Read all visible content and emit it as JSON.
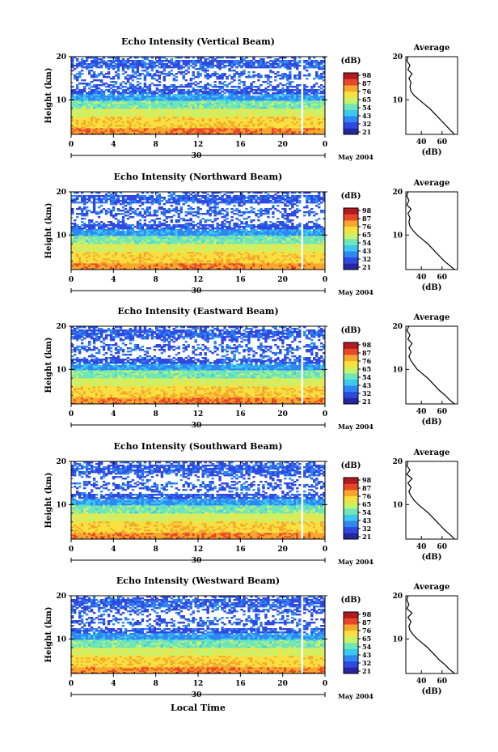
{
  "chart_data": {
    "type": "heatmap",
    "colorbar": {
      "unit": "(dB)",
      "ticks": [
        "98",
        "87",
        "76",
        "65",
        "54",
        "43",
        "32",
        "21"
      ],
      "colors": [
        "#26269e",
        "#2f49e0",
        "#2f88f2",
        "#3cc9f0",
        "#6fe6b8",
        "#c9f26a",
        "#f7e040",
        "#f7a72d",
        "#e8482a",
        "#b11a20"
      ]
    },
    "x_ticks": [
      "0",
      "4",
      "8",
      "12",
      "16",
      "20",
      "0"
    ],
    "date_label": "30",
    "month_label": "May 2004",
    "x_axis_title": "Local Time",
    "y_axis_title": "Height (km)",
    "y_ticks": [
      "20",
      "10"
    ],
    "avg_x_ticks": [
      "40",
      "60"
    ],
    "avg_title": "Average",
    "avg_xlabel": "(dB)",
    "panels": [
      {
        "title": "Echo Intensity (Vertical Beam)",
        "average_profile": {
          "height_km": [
            2,
            3,
            4,
            5,
            6,
            7,
            8,
            9,
            10,
            11,
            12,
            13,
            14,
            15,
            16,
            17,
            18,
            19,
            20
          ],
          "db": [
            72,
            68,
            64,
            60,
            56,
            52,
            48,
            43,
            38,
            33,
            30,
            29,
            30,
            28,
            31,
            27,
            29,
            26,
            27
          ]
        }
      },
      {
        "title": "Echo Intensity (Northward Beam)",
        "average_profile": {
          "height_km": [
            2,
            3,
            4,
            5,
            6,
            7,
            8,
            9,
            10,
            11,
            12,
            13,
            14,
            15,
            16,
            17,
            18,
            19,
            20
          ],
          "db": [
            72,
            67,
            62,
            58,
            54,
            50,
            46,
            41,
            36,
            32,
            29,
            28,
            29,
            27,
            30,
            26,
            28,
            26,
            27
          ]
        }
      },
      {
        "title": "Echo Intensity (Eastward Beam)",
        "average_profile": {
          "height_km": [
            2,
            3,
            4,
            5,
            6,
            7,
            8,
            9,
            10,
            11,
            12,
            13,
            14,
            15,
            16,
            17,
            18,
            19,
            20
          ],
          "db": [
            72,
            67,
            63,
            58,
            54,
            50,
            46,
            41,
            36,
            33,
            30,
            28,
            30,
            28,
            31,
            27,
            29,
            26,
            28
          ]
        }
      },
      {
        "title": "Echo Intensity (Southward Beam)",
        "average_profile": {
          "height_km": [
            2,
            3,
            4,
            5,
            6,
            7,
            8,
            9,
            10,
            11,
            12,
            13,
            14,
            15,
            16,
            17,
            18,
            19,
            20
          ],
          "db": [
            72,
            68,
            63,
            59,
            55,
            51,
            47,
            42,
            37,
            33,
            30,
            28,
            30,
            27,
            31,
            26,
            29,
            26,
            27
          ]
        }
      },
      {
        "title": "Echo Intensity (Westward Beam)",
        "average_profile": {
          "height_km": [
            2,
            3,
            4,
            5,
            6,
            7,
            8,
            9,
            10,
            11,
            12,
            13,
            14,
            15,
            16,
            17,
            18,
            19,
            20
          ],
          "db": [
            72,
            67,
            63,
            58,
            54,
            50,
            46,
            41,
            36,
            32,
            29,
            28,
            30,
            27,
            31,
            26,
            28,
            26,
            27
          ]
        }
      }
    ]
  }
}
